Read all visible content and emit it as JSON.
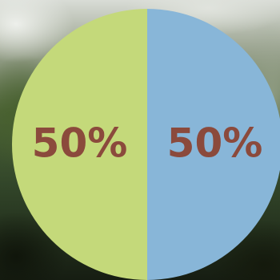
{
  "chart_data": {
    "type": "pie",
    "categories": [
      "",
      ""
    ],
    "values": [
      50,
      50
    ],
    "labels": [
      "50%",
      "50%"
    ],
    "colors": [
      "#88b6d8",
      "#c4d97a"
    ],
    "label_color": "#8b4a3c",
    "title": "",
    "legend": "none"
  }
}
